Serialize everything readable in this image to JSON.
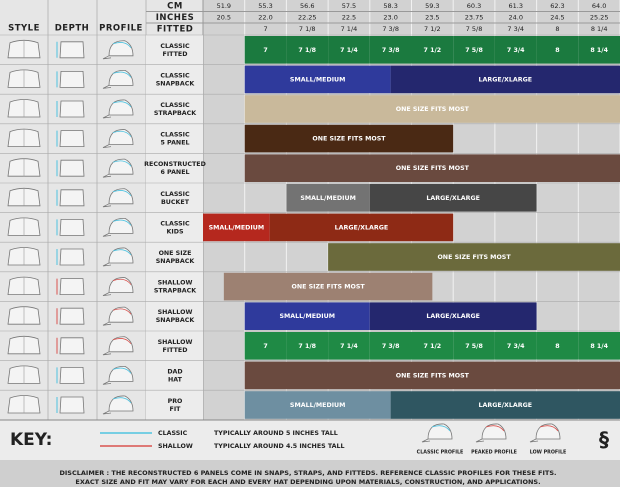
{
  "header": {
    "style": "STYLE",
    "depth": "DEPTH",
    "profile": "PROFILE",
    "cm_label": "CM",
    "inches_label": "INCHES",
    "fitted_label": "FITTED"
  },
  "cm": [
    "51.9",
    "55.3",
    "56.6",
    "57.5",
    "58.3",
    "59.3",
    "60.3",
    "61.3",
    "62.3",
    "64.0"
  ],
  "inches": [
    "20.5",
    "22.0",
    "22.25",
    "22.5",
    "23.0",
    "23.5",
    "23.75",
    "24.0",
    "24.5",
    "25.25"
  ],
  "fitted": [
    "7",
    "7 1/8",
    "7 1/4",
    "7 3/8",
    "7 1/2",
    "7 5/8",
    "7 3/4",
    "8",
    "8 1/4"
  ],
  "rows": [
    {
      "name": [
        "CLASSIC",
        "FITTED"
      ],
      "segments": [
        {
          "label": "7",
          "color": "#1b7a3f"
        },
        {
          "label": "7 1/8",
          "color": "#1b7a3f"
        },
        {
          "label": "7 1/4",
          "color": "#1b7a3f"
        },
        {
          "label": "7 3/8",
          "color": "#1b7a3f"
        },
        {
          "label": "7 1/2",
          "color": "#1b7a3f"
        },
        {
          "label": "7 5/8",
          "color": "#1b7a3f"
        },
        {
          "label": "7 3/4",
          "color": "#1b7a3f"
        },
        {
          "label": "8",
          "color": "#1b7a3f"
        },
        {
          "label": "8 1/4",
          "color": "#1b7a3f"
        }
      ]
    },
    {
      "name": [
        "CLASSIC",
        "SNAPBACK"
      ],
      "segments": [
        {
          "label": "SMALL/MEDIUM",
          "color": "#2f3a9c"
        },
        {
          "label": "LARGE/XLARGE",
          "color": "#24276e"
        }
      ]
    },
    {
      "name": [
        "CLASSIC",
        "STRAPBACK"
      ],
      "segments": [
        {
          "label": "ONE SIZE FITS MOST",
          "color": "#c9b99b"
        }
      ]
    },
    {
      "name": [
        "CLASSIC",
        "5 PANEL"
      ],
      "segments": [
        {
          "label": "ONE SIZE FITS MOST",
          "color": "#4a2914"
        }
      ]
    },
    {
      "name": [
        "RECONSTRUCTED",
        "6 PANEL"
      ],
      "segments": [
        {
          "label": "ONE SIZE FITS MOST",
          "color": "#6a4a3f"
        }
      ]
    },
    {
      "name": [
        "CLASSIC",
        "BUCKET"
      ],
      "segments": [
        {
          "label": "SMALL/MEDIUM",
          "color": "#737373"
        },
        {
          "label": "LARGE/XLARGE",
          "color": "#464646"
        }
      ]
    },
    {
      "name": [
        "CLASSIC",
        "KIDS"
      ],
      "segments": [
        {
          "label": "SMALL/MEDIUM",
          "color": "#b5281e"
        },
        {
          "label": "LARGE/XLARGE",
          "color": "#8e2a15"
        }
      ]
    },
    {
      "name": [
        "ONE SIZE",
        "SNAPBACK"
      ],
      "segments": [
        {
          "label": "ONE SIZE FITS MOST",
          "color": "#6b6a3c"
        }
      ]
    },
    {
      "name": [
        "SHALLOW",
        "STRAPBACK"
      ],
      "segments": [
        {
          "label": "ONE SIZE FITS MOST",
          "color": "#9d8172"
        }
      ]
    },
    {
      "name": [
        "SHALLOW",
        "SNAPBACK"
      ],
      "segments": [
        {
          "label": "SMALL/MEDIUM",
          "color": "#2f3a9c"
        },
        {
          "label": "LARGE/XLARGE",
          "color": "#24276e"
        }
      ]
    },
    {
      "name": [
        "SHALLOW",
        "FITTED"
      ],
      "segments": [
        {
          "label": "7",
          "color": "#1f8a45"
        },
        {
          "label": "7 1/8",
          "color": "#1f8a45"
        },
        {
          "label": "7 1/4",
          "color": "#1f8a45"
        },
        {
          "label": "7 3/8",
          "color": "#1f8a45"
        },
        {
          "label": "7 1/2",
          "color": "#1f8a45"
        },
        {
          "label": "7 5/8",
          "color": "#1f8a45"
        },
        {
          "label": "7 3/4",
          "color": "#1f8a45"
        },
        {
          "label": "8",
          "color": "#1f8a45"
        },
        {
          "label": "8 1/4",
          "color": "#1f8a45"
        }
      ]
    },
    {
      "name": [
        "DAD",
        "HAT"
      ],
      "segments": [
        {
          "label": "ONE SIZE FITS MOST",
          "color": "#6a4a3f"
        }
      ]
    },
    {
      "name": [
        "PRO",
        "FIT"
      ],
      "segments": [
        {
          "label": "SMALL/MEDIUM",
          "color": "#6e8fa1"
        },
        {
          "label": "LARGE/XLARGE",
          "color": "#2f5661"
        }
      ]
    }
  ],
  "key": {
    "title": "KEY:",
    "classic": "CLASSIC",
    "classic_desc": "TYPICALLY AROUND 5 INCHES TALL",
    "shallow": "SHALLOW",
    "shallow_desc": "TYPICALLY AROUND 4.5 INCHES TALL",
    "profiles": [
      "CLASSIC PROFILE",
      "PEAKED PROFILE",
      "LOW PROFILE"
    ]
  },
  "disclaimer": [
    "DISCLAIMER : THE RECONSTRUCTED 6 PANELS COME IN SNAPS, STRAPS, AND FITTEDS. REFERENCE CLASSIC PROFILES FOR THESE FITS.",
    "EXACT SIZE AND FIT MAY VARY FOR EACH AND EVERY HAT DEPENDING UPON MATERIALS, CONSTRUCTION, AND APPLICATIONS."
  ]
}
